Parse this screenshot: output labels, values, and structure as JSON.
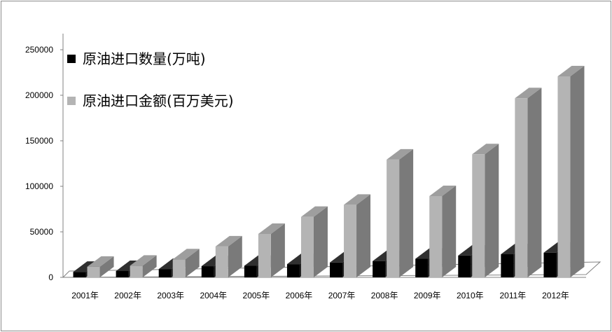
{
  "chart_data": {
    "type": "bar",
    "style": "3d-clustered-column",
    "categories": [
      "2001年",
      "2002年",
      "2003年",
      "2004年",
      "2005年",
      "2006年",
      "2007年",
      "2008年",
      "2009年",
      "2010年",
      "2011年",
      "2012年"
    ],
    "series": [
      {
        "name": "原油进口数量(万吨)",
        "color": "#000000",
        "values": [
          6026,
          6941,
          9112,
          12272,
          12682,
          14518,
          16316,
          17888,
          20365,
          23931,
          25378,
          27103
        ]
      },
      {
        "name": "原油进口金额(百万美元)",
        "color": "#b4b4b4",
        "values": [
          11666,
          12757,
          19814,
          33911,
          47724,
          66409,
          79725,
          129332,
          89256,
          135151,
          196718,
          220777
        ]
      }
    ],
    "ylim": [
      0,
      250000
    ],
    "yticks": [
      "0",
      "50000",
      "100000",
      "150000",
      "200000",
      "250000"
    ],
    "grid": false,
    "legend_position": "top-left"
  }
}
